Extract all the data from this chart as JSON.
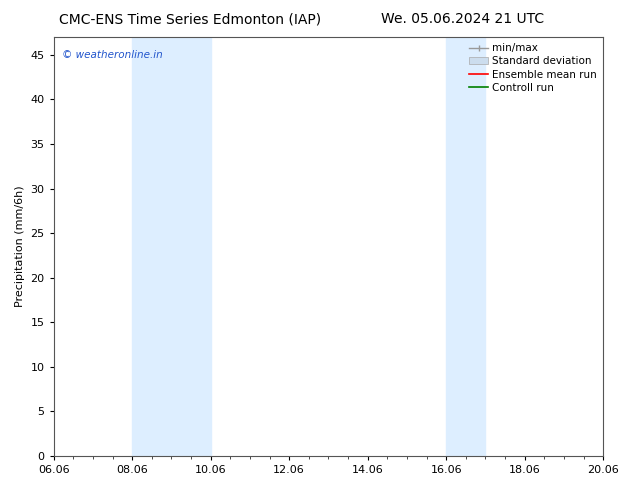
{
  "title_left": "CMC-ENS Time Series Edmonton (IAP)",
  "title_right": "We. 05.06.2024 21 UTC",
  "ylabel": "Precipitation (mm/6h)",
  "ylim": [
    0,
    47
  ],
  "yticks": [
    0,
    5,
    10,
    15,
    20,
    25,
    30,
    35,
    40,
    45
  ],
  "xtick_labels": [
    "06.06",
    "08.06",
    "10.06",
    "12.06",
    "14.06",
    "16.06",
    "18.06",
    "20.06"
  ],
  "xtick_positions": [
    0,
    2,
    4,
    6,
    8,
    10,
    12,
    14
  ],
  "xlim": [
    0,
    14
  ],
  "shaded_regions": [
    {
      "x_start": 2.0,
      "x_end": 4.0
    },
    {
      "x_start": 10.0,
      "x_end": 11.0
    }
  ],
  "shaded_color": "#ddeeff",
  "watermark_text": "© weatheronline.in",
  "watermark_color": "#2255cc",
  "background_color": "#ffffff",
  "title_fontsize": 10,
  "axis_label_fontsize": 8,
  "tick_fontsize": 8,
  "legend_fontsize": 7.5,
  "spine_color": "#555555"
}
